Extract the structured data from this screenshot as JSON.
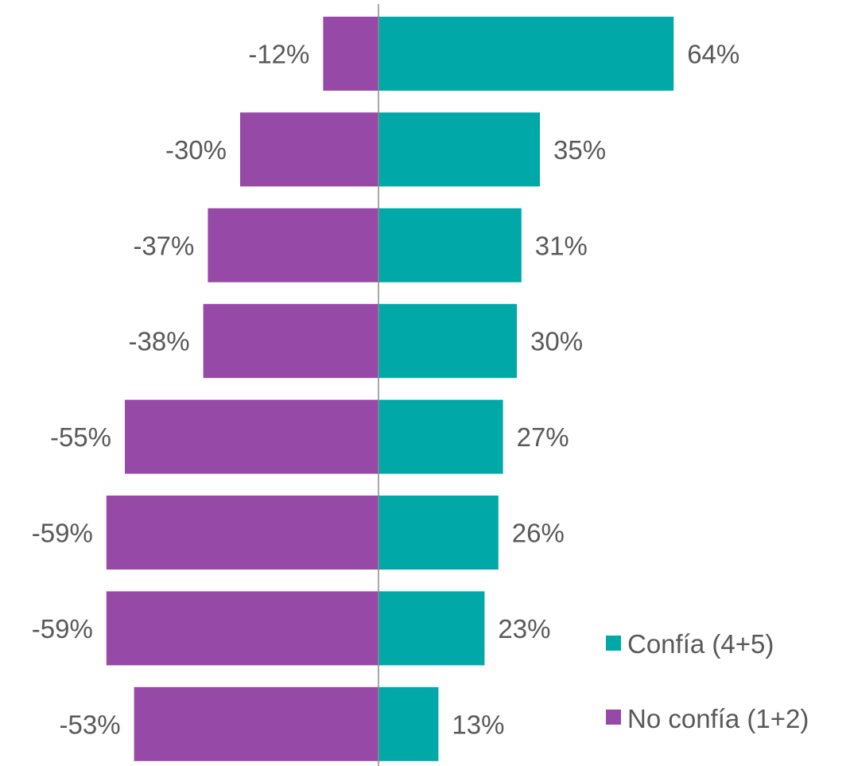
{
  "chart_data": {
    "type": "bar",
    "orientation": "horizontal",
    "stacked": "diverging",
    "series": [
      {
        "name": "Confía (4+5)",
        "color": "#00A9A8",
        "values": [
          64,
          35,
          31,
          30,
          27,
          26,
          23,
          13
        ],
        "labels": [
          "64%",
          "35%",
          "31%",
          "30%",
          "27%",
          "26%",
          "23%",
          "13%"
        ]
      },
      {
        "name": "No confía (1+2)",
        "color": "#9749A8",
        "values": [
          -12,
          -30,
          -37,
          -38,
          -55,
          -59,
          -59,
          -53
        ],
        "labels": [
          "-12%",
          "-30%",
          "-37%",
          "-38%",
          "-55%",
          "-59%",
          "-59%",
          "-53%"
        ]
      }
    ],
    "xlim": [
      -59,
      64
    ],
    "axis_color": "#8C8C8C",
    "label_color": "#595959",
    "grid": false,
    "legend_position": "bottom-right"
  }
}
